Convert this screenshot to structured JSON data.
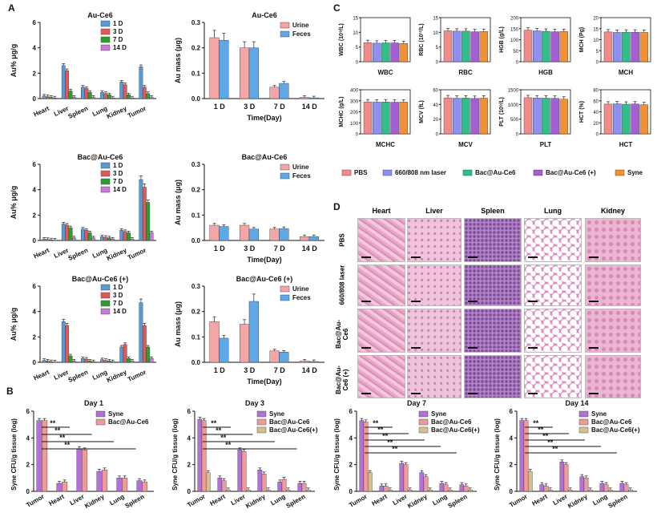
{
  "panels": {
    "A": "A",
    "B": "B",
    "C": "C",
    "D": "D"
  },
  "colors": {
    "d1": "#5b9bd5",
    "d3": "#e05a5a",
    "d7": "#2ca02c",
    "d14": "#c97ad8",
    "urine": "#f4a6a6",
    "feces": "#5fa8e8",
    "syne": "#b270d8",
    "bac": "#f29a9a",
    "bacp": "#d3c08a",
    "pbs": "#f08b8b",
    "laser": "#8f8ff0",
    "bacAu": "#2ebf8a",
    "bacAuP": "#a45fd1",
    "syneC": "#f39035"
  },
  "a_organs": [
    "Heart",
    "Liver",
    "Spleen",
    "Lung",
    "Kidney",
    "Tumor"
  ],
  "a_legend": [
    "1 D",
    "3 D",
    "7 D",
    "14 D"
  ],
  "a_ylabel": "Au% μg/g",
  "a_bio": [
    {
      "title": "Au-Ce6",
      "ymax": 6,
      "ticks": [
        0,
        2,
        4,
        6
      ],
      "series": [
        [
          0.2,
          2.6,
          0.9,
          0.5,
          1.3,
          2.5
        ],
        [
          0.15,
          2.2,
          0.8,
          0.4,
          1.1,
          0.9
        ],
        [
          0.1,
          0.6,
          0.5,
          0.3,
          0.3,
          0.4
        ],
        [
          0.05,
          0.1,
          0.1,
          0.05,
          0.05,
          0.1
        ]
      ]
    },
    {
      "title": "Bac@Au-Ce6",
      "ymax": 6,
      "ticks": [
        0,
        2,
        4,
        6
      ],
      "series": [
        [
          0.1,
          1.3,
          0.9,
          0.3,
          0.8,
          4.8
        ],
        [
          0.08,
          1.2,
          0.8,
          0.25,
          0.7,
          4.2
        ],
        [
          0.05,
          1.0,
          0.6,
          0.2,
          0.6,
          3.0
        ],
        [
          0.03,
          0.2,
          0.2,
          0.1,
          0.1,
          0.6
        ]
      ]
    },
    {
      "title": "Bac@Au-Ce6 (+)",
      "ymax": 6,
      "ticks": [
        0,
        2,
        4,
        6
      ],
      "series": [
        [
          0.15,
          3.2,
          0.3,
          0.2,
          1.2,
          4.7
        ],
        [
          0.1,
          2.9,
          0.25,
          0.15,
          1.4,
          2.9
        ],
        [
          0.05,
          0.5,
          0.1,
          0.1,
          0.3,
          1.2
        ],
        [
          0.03,
          0.1,
          0.05,
          0.05,
          0.1,
          0.3
        ]
      ]
    }
  ],
  "a_exc": [
    {
      "title": "Au-Ce6",
      "ymax": 0.3,
      "ticks": [
        "0.0",
        "0.1",
        "0.2",
        "0.3"
      ],
      "urine": [
        0.24,
        0.2,
        0.045,
        0.005
      ],
      "feces": [
        0.23,
        0.2,
        0.06,
        0.003
      ]
    },
    {
      "title": "Bac@Au-Ce6",
      "ymax": 0.3,
      "ticks": [
        "0.0",
        "0.1",
        "0.2",
        "0.3"
      ],
      "urine": [
        0.06,
        0.06,
        0.045,
        0.015
      ],
      "feces": [
        0.055,
        0.045,
        0.047,
        0.015
      ]
    },
    {
      "title": "Bac@Au-Ce6 (+)",
      "ymax": 0.3,
      "ticks": [
        "0.0",
        "0.1",
        "0.2",
        "0.3"
      ],
      "urine": [
        0.16,
        0.15,
        0.045,
        0.005
      ],
      "feces": [
        0.095,
        0.24,
        0.04,
        0.003
      ]
    }
  ],
  "exc_days": [
    "1 D",
    "3 D",
    "7 D",
    "14 D"
  ],
  "exc_legend": [
    "Urine",
    "Feces"
  ],
  "exc_ylabel": "Au mass (μg)",
  "exc_xlabel": "Time(Day)",
  "b_ylabel": "Syne CFU/g tissue (log)",
  "b_ticks": [
    "0",
    "2",
    "4",
    "6"
  ],
  "b_panels": [
    {
      "title": "Day 1",
      "organs": [
        "Tumor",
        "Heart",
        "Liver",
        "Kidney",
        "Lung",
        "Spleen"
      ],
      "legend": [
        "Syne",
        "Bac@Au-Ce6"
      ],
      "series": [
        [
          5.3,
          0.6,
          3.2,
          1.5,
          1.0,
          0.8
        ],
        [
          5.3,
          0.7,
          3.1,
          1.6,
          1.0,
          0.7
        ]
      ],
      "sig": [
        "**",
        "**",
        "**",
        "**"
      ]
    },
    {
      "title": "Day 3",
      "organs": [
        "Tumor",
        "Heart",
        "Liver",
        "Kidney",
        "Lung",
        "Spleen"
      ],
      "legend": [
        "Syne",
        "Bac@Au-Ce6",
        "Bac@Au-Ce6(+)"
      ],
      "series": [
        [
          5.4,
          1.0,
          3.1,
          1.6,
          0.7,
          0.6
        ],
        [
          5.3,
          0.8,
          3.0,
          1.3,
          0.9,
          0.6
        ],
        [
          1.4,
          0.1,
          0.1,
          0.1,
          0.1,
          0.1
        ]
      ],
      "sig": [
        "**",
        "**",
        "**",
        "**"
      ]
    },
    {
      "title": "Day 7",
      "organs": [
        "Tumor",
        "Heart",
        "Liver",
        "Kidney",
        "Lung",
        "Spleen"
      ],
      "legend": [
        "Syne",
        "Bac@Au-Ce6",
        "Bac@Au-Ce6(+)"
      ],
      "series": [
        [
          5.3,
          0.4,
          2.1,
          1.4,
          0.6,
          0.5
        ],
        [
          5.2,
          0.4,
          2.0,
          1.1,
          0.5,
          0.4
        ],
        [
          1.4,
          0.1,
          0.1,
          0.1,
          0.1,
          0.1
        ]
      ],
      "sig": [
        "**",
        "**",
        "**",
        "**",
        "**"
      ]
    },
    {
      "title": "Day 14",
      "organs": [
        "Tumor",
        "Heart",
        "Liver",
        "Kidney",
        "Lung",
        "Spleen"
      ],
      "legend": [
        "Syne",
        "Bac@Au-Ce6",
        "Bac@Au-Ce6(+)"
      ],
      "series": [
        [
          5.3,
          0.5,
          2.2,
          1.1,
          0.6,
          0.6
        ],
        [
          5.3,
          0.4,
          2.0,
          1.0,
          0.5,
          0.5
        ],
        [
          1.5,
          0.1,
          0.1,
          0.1,
          0.1,
          0.1
        ]
      ],
      "sig": [
        "**",
        "**",
        "**",
        "**",
        "**"
      ]
    }
  ],
  "c_panels": [
    {
      "label": "WBC",
      "unit": "WBC (10⁹/L)",
      "ticks": [
        "0",
        "5",
        "10",
        "15"
      ],
      "ymax": 15,
      "vals": [
        6.5,
        6.3,
        6.4,
        6.4,
        6.2
      ]
    },
    {
      "label": "RBC",
      "unit": "RBC (10¹²/L)",
      "ticks": [
        "0",
        "5",
        "10",
        "15"
      ],
      "ymax": 15,
      "vals": [
        10.5,
        10.4,
        10.4,
        10.2,
        10.3
      ]
    },
    {
      "label": "HGB",
      "unit": "HGB (g/L)",
      "ticks": [
        "0",
        "50",
        "100",
        "150",
        "200"
      ],
      "ymax": 200,
      "vals": [
        143,
        140,
        138,
        136,
        137
      ]
    },
    {
      "label": "MCH",
      "unit": "MCH (Pg)",
      "ticks": [
        "0",
        "5",
        "10",
        "15",
        "20"
      ],
      "ymax": 20,
      "vals": [
        13.5,
        13.3,
        13.4,
        13.4,
        13.3
      ]
    },
    {
      "label": "MCHC",
      "unit": "MCHC (g/L)",
      "ticks": [
        "0",
        "100",
        "200",
        "300",
        "400"
      ],
      "ymax": 400,
      "vals": [
        290,
        288,
        289,
        287,
        288
      ]
    },
    {
      "label": "MCV",
      "unit": "MCV (fL)",
      "ticks": [
        "0",
        "20",
        "40",
        "60"
      ],
      "ymax": 60,
      "vals": [
        49,
        48.5,
        48.7,
        48.2,
        48.6
      ]
    },
    {
      "label": "PLT",
      "unit": "PLT (10⁹/L)",
      "ticks": [
        "0",
        "500",
        "1000",
        "1500"
      ],
      "ymax": 1500,
      "vals": [
        1230,
        1220,
        1215,
        1210,
        1180
      ]
    },
    {
      "label": "HCT",
      "unit": "HCT (%)",
      "ticks": [
        "0",
        "20",
        "40",
        "60",
        "80"
      ],
      "ymax": 80,
      "vals": [
        54,
        54.5,
        53.8,
        54.2,
        53
      ]
    }
  ],
  "c_legend": [
    "PBS",
    "660/808 nm laser",
    "Bac@Au-Ce6",
    "Bac@Au-Ce6 (+)",
    "Syne"
  ],
  "d_cols": [
    "Heart",
    "Liver",
    "Spleen",
    "Lung",
    "Kidney"
  ],
  "d_rows": [
    "PBS",
    "660/808 laser",
    "Bac@Au-Ce6",
    "Bac@Au-Ce6 (+)"
  ]
}
